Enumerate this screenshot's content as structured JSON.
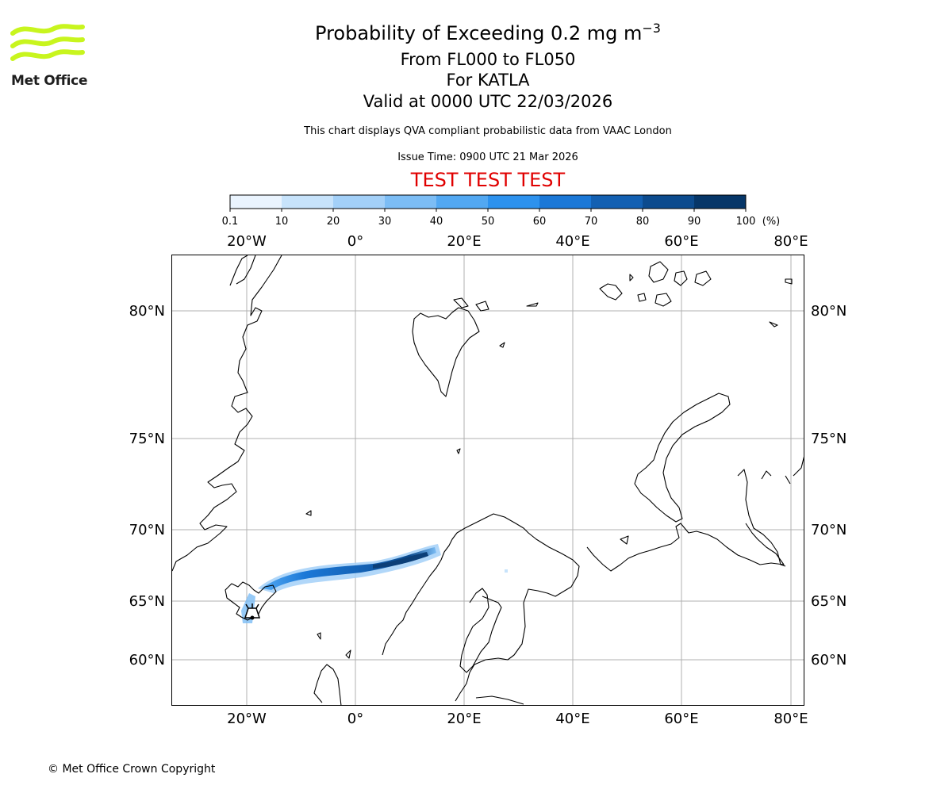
{
  "branding": {
    "logo_text": "Met Office",
    "copyright": "© Met Office Crown Copyright"
  },
  "header": {
    "title_main": "Probability of Exceeding 0.2 mg m",
    "title_sup": "−3",
    "levels": "From FL000 to FL050",
    "volcano": "For KATLA",
    "valid": "Valid at 0000 UTC 22/03/2026",
    "note": "This chart displays QVA compliant probabilistic data from VAAC London",
    "issue": "Issue Time: 0900 UTC 21 Mar 2026",
    "test_banner": "TEST TEST TEST"
  },
  "colorbar": {
    "unit": "(%)",
    "ticks": [
      "0.1",
      "10",
      "20",
      "30",
      "40",
      "50",
      "60",
      "70",
      "80",
      "90",
      "100"
    ],
    "colors": [
      "#eaf4fe",
      "#c7e3fb",
      "#a3d0f8",
      "#7cbdf5",
      "#52a8f2",
      "#2d92ee",
      "#1b78d7",
      "#1360b2",
      "#0c4b8e",
      "#063668"
    ]
  },
  "map": {
    "lon_labels": [
      "20°W",
      "0°",
      "20°E",
      "40°E",
      "60°E",
      "80°E"
    ],
    "lat_labels": [
      "80°N",
      "75°N",
      "70°N",
      "65°N",
      "60°N"
    ],
    "volcano_marker": "volcano-icon"
  },
  "plume": {
    "description_units": "degrees",
    "source": {
      "lon": -19.1,
      "lat": 63.6
    },
    "axis": [
      {
        "lon": -19.0,
        "lat": 64.0
      },
      {
        "lon": -17.5,
        "lat": 65.7
      },
      {
        "lon": -14.0,
        "lat": 66.8
      },
      {
        "lon": -10.0,
        "lat": 67.3
      },
      {
        "lon": -5.0,
        "lat": 67.6
      },
      {
        "lon": 0.0,
        "lat": 67.8
      },
      {
        "lon": 5.0,
        "lat": 68.1
      },
      {
        "lon": 10.0,
        "lat": 68.5
      },
      {
        "lon": 14.0,
        "lat": 68.8
      }
    ],
    "max_probability_range": "80-90"
  }
}
